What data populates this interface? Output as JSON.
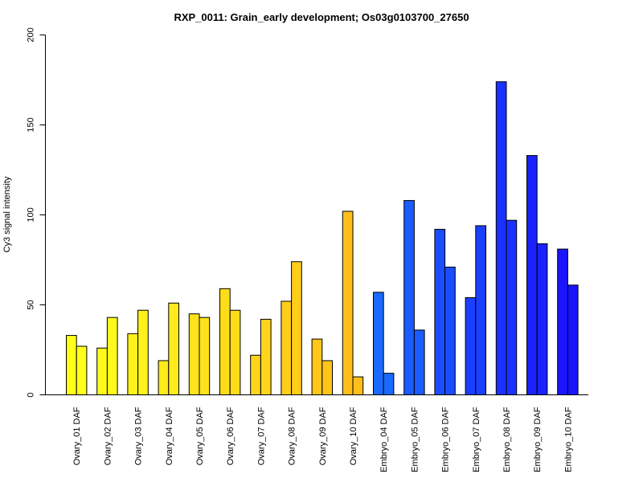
{
  "chart_data": {
    "type": "bar",
    "title": "RXP_0011: Grain_early development; Os03g0103700_27650",
    "xlabel": "",
    "ylabel": "Cy3 signal intensity",
    "ylim": [
      0,
      200
    ],
    "yticks": [
      0,
      50,
      100,
      150,
      200
    ],
    "grid": false,
    "legend": "none",
    "categories": [
      "Ovary_01 DAF",
      "Ovary_02 DAF",
      "Ovary_03 DAF",
      "Ovary_04 DAF",
      "Ovary_05 DAF",
      "Ovary_06 DAF",
      "Ovary_07 DAF",
      "Ovary_08 DAF",
      "Ovary_09 DAF",
      "Ovary_10 DAF",
      "Embryo_04 DAF",
      "Embryo_05 DAF",
      "Embryo_06 DAF",
      "Embryo_07 DAF",
      "Embryo_08 DAF",
      "Embryo_09 DAF",
      "Embryo_10 DAF"
    ],
    "series": [
      {
        "values": [
          33,
          26,
          34,
          19,
          45,
          59,
          22,
          52,
          31,
          102,
          57,
          108,
          92,
          54,
          174,
          133,
          81
        ]
      },
      {
        "values": [
          27,
          43,
          47,
          51,
          43,
          47,
          42,
          74,
          19,
          10,
          12,
          36,
          71,
          94,
          97,
          84,
          61
        ]
      }
    ],
    "colors": [
      "#FFFF1A",
      "#FFFA1A",
      "#FFF21A",
      "#FFEB1A",
      "#FFE31A",
      "#FFDC1A",
      "#FFD41A",
      "#FFCD1A",
      "#FFC51A",
      "#FFBE1A",
      "#1A6AFF",
      "#1A5CFF",
      "#1A4DFF",
      "#1A3FFF",
      "#1A31FF",
      "#1A22FF",
      "#1A14FF"
    ]
  }
}
